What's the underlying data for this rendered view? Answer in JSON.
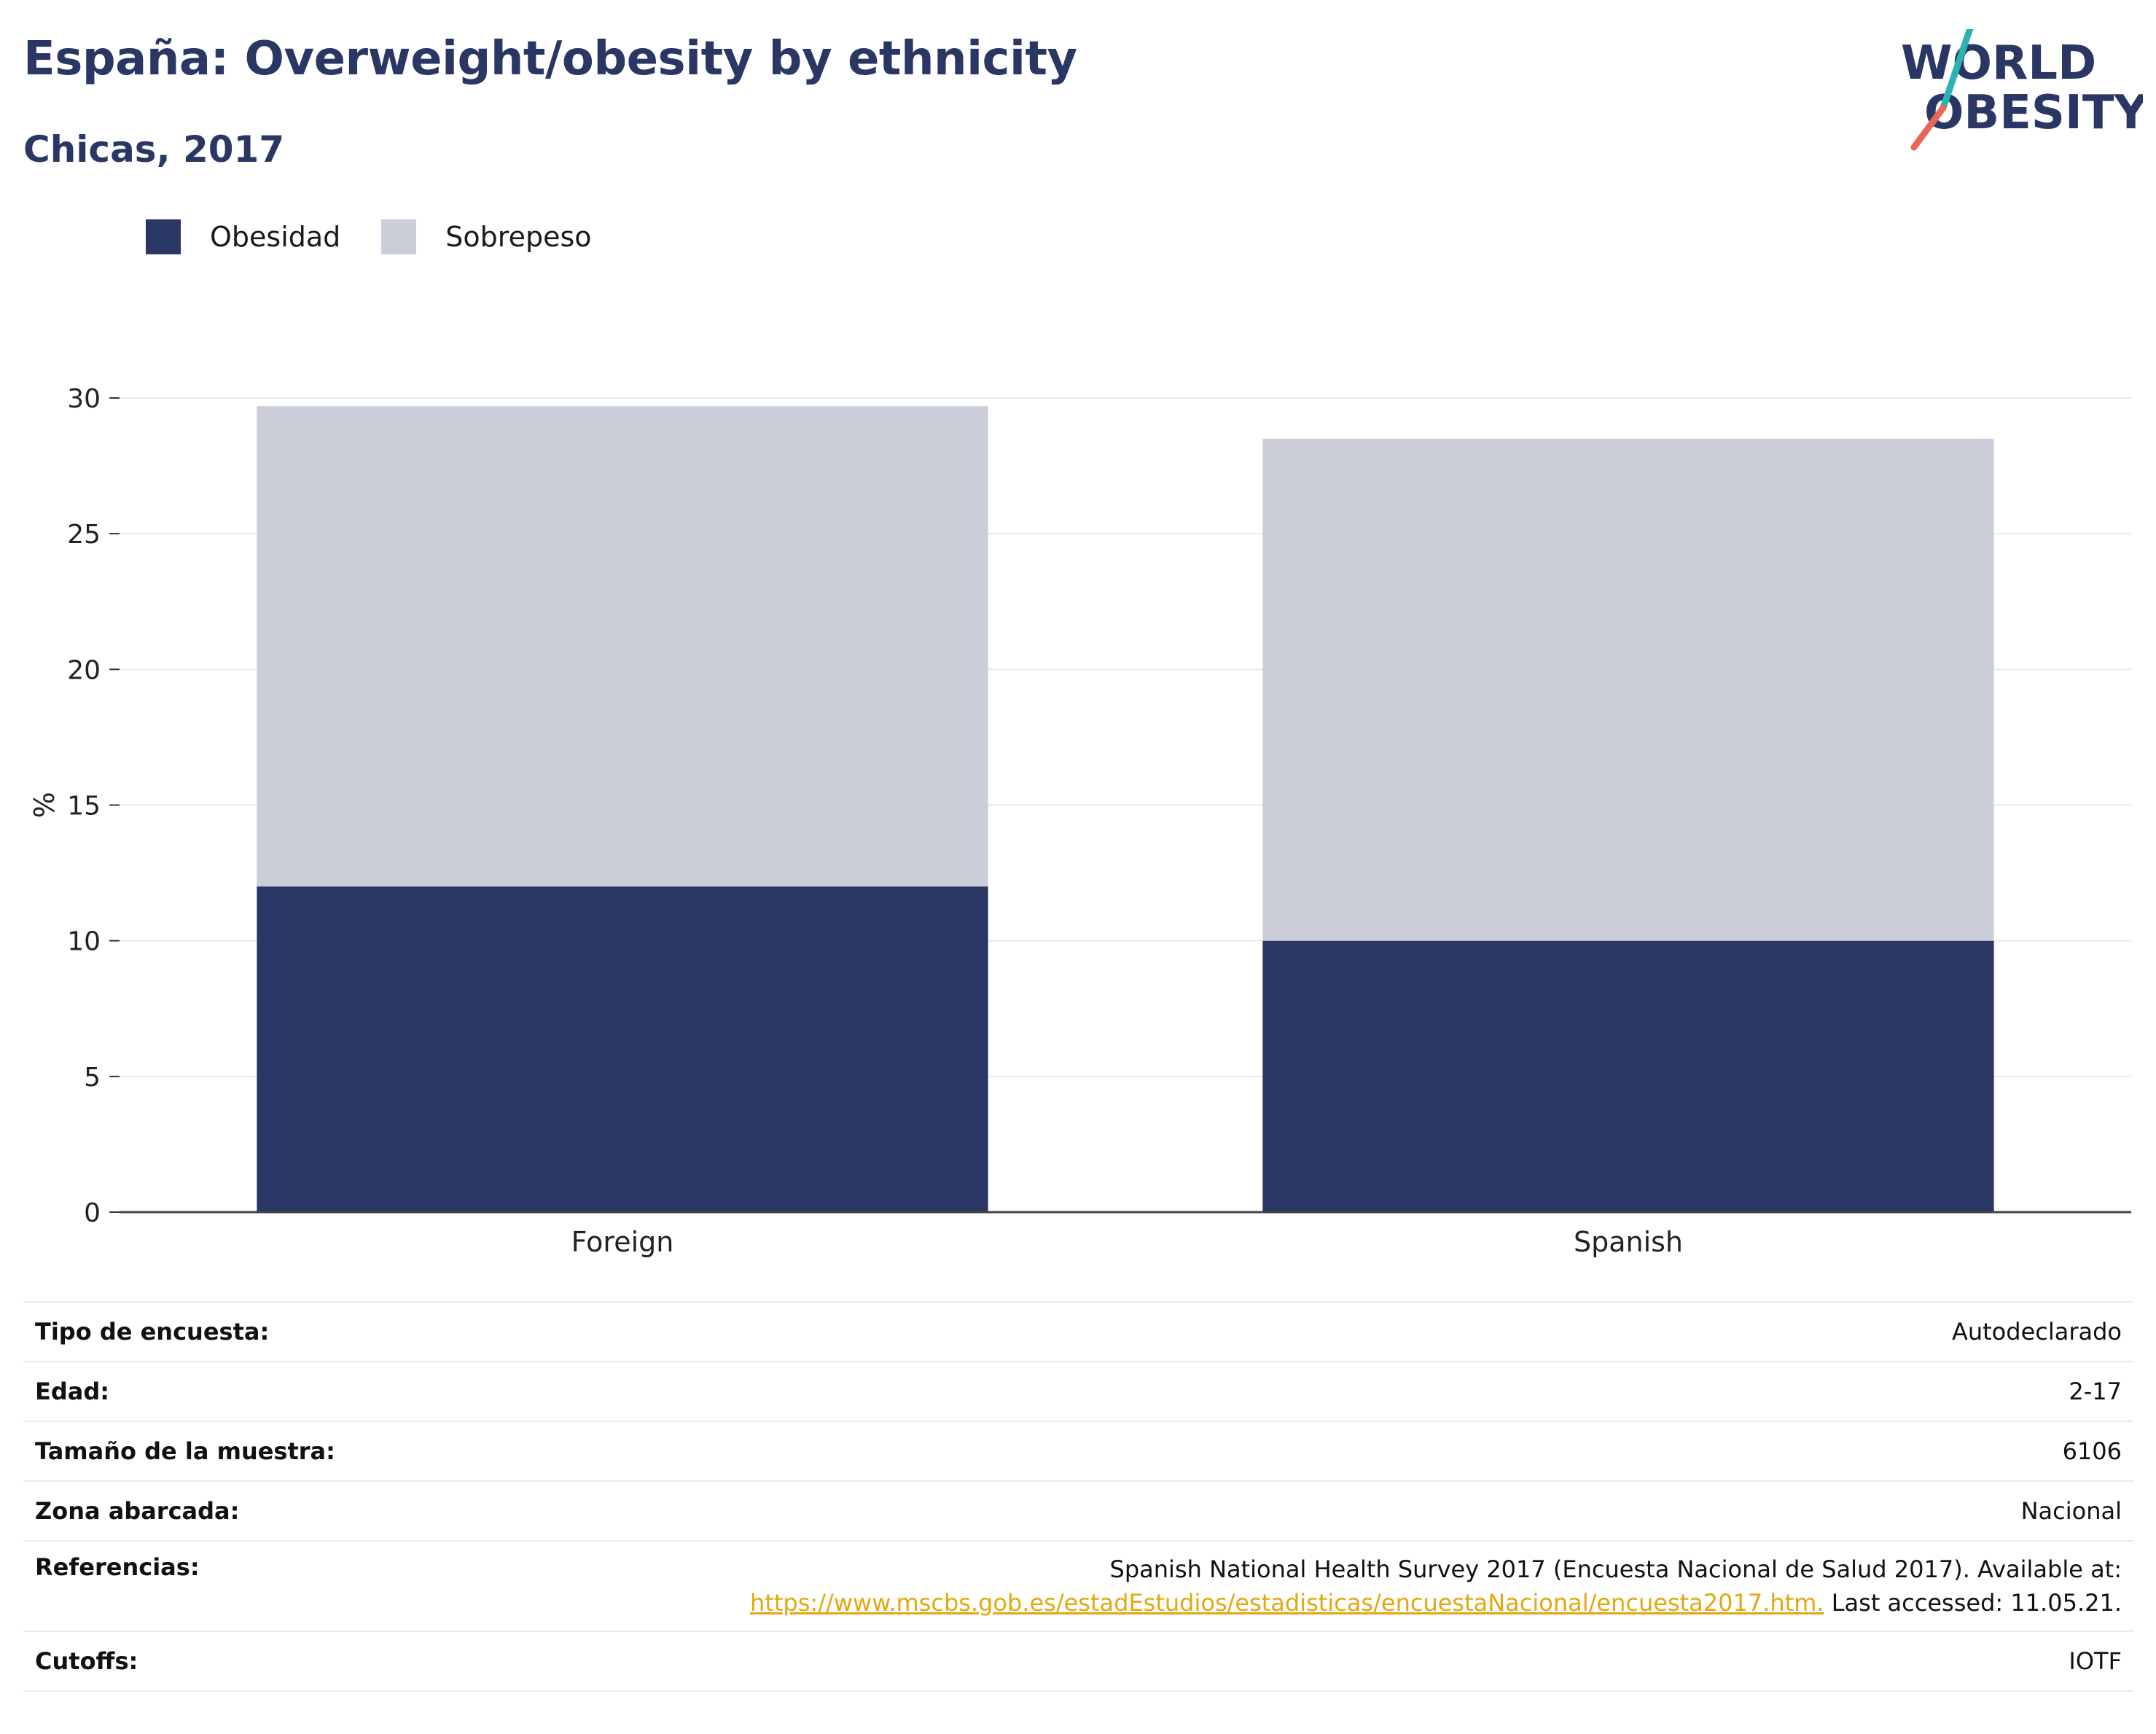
{
  "header": {
    "title": "España: Overweight/obesity by ethnicity",
    "subtitle": "Chicas, 2017"
  },
  "logo": {
    "line1": "WORLD",
    "line2": "OBESITY",
    "colors": {
      "text": "#2a3764",
      "teal": "#2ab3b1",
      "coral": "#e8665a"
    }
  },
  "legend": {
    "items": [
      {
        "label": "Obesidad",
        "color": "#2a3764"
      },
      {
        "label": "Sobrepeso",
        "color": "#cbcdd9"
      }
    ]
  },
  "chart_data": {
    "type": "bar",
    "stacked": true,
    "categories": [
      "Foreign",
      "Spanish"
    ],
    "series": [
      {
        "name": "Obesidad",
        "values": [
          12.0,
          10.0
        ],
        "color": "#2a3764"
      },
      {
        "name": "Sobrepeso",
        "values": [
          17.7,
          18.5
        ],
        "color": "#cbcdd9"
      }
    ],
    "ylabel": "%",
    "ylim": [
      0,
      30
    ],
    "yticks": [
      0,
      5,
      10,
      15,
      20,
      25,
      30
    ],
    "grid": true,
    "legend_position": "top-left"
  },
  "meta": {
    "rows": [
      {
        "label": "Tipo de encuesta:",
        "value": "Autodeclarado"
      },
      {
        "label": "Edad:",
        "value": "2-17"
      },
      {
        "label": "Tamaño de la muestra:",
        "value": "6106"
      },
      {
        "label": "Zona abarcada:",
        "value": "Nacional"
      },
      {
        "label": "Referencias:",
        "value_line1": "Spanish National Health Survey 2017 (Encuesta Nacional de Salud 2017). Available at:",
        "link": "https://www.mscbs.gob.es/estadEstudios/estadisticas/encuestaNacional/encuesta2017.htm.",
        "value_after_link": " Last accessed: 11.05.21."
      },
      {
        "label": "Cutoffs:",
        "value": "IOTF"
      }
    ]
  }
}
